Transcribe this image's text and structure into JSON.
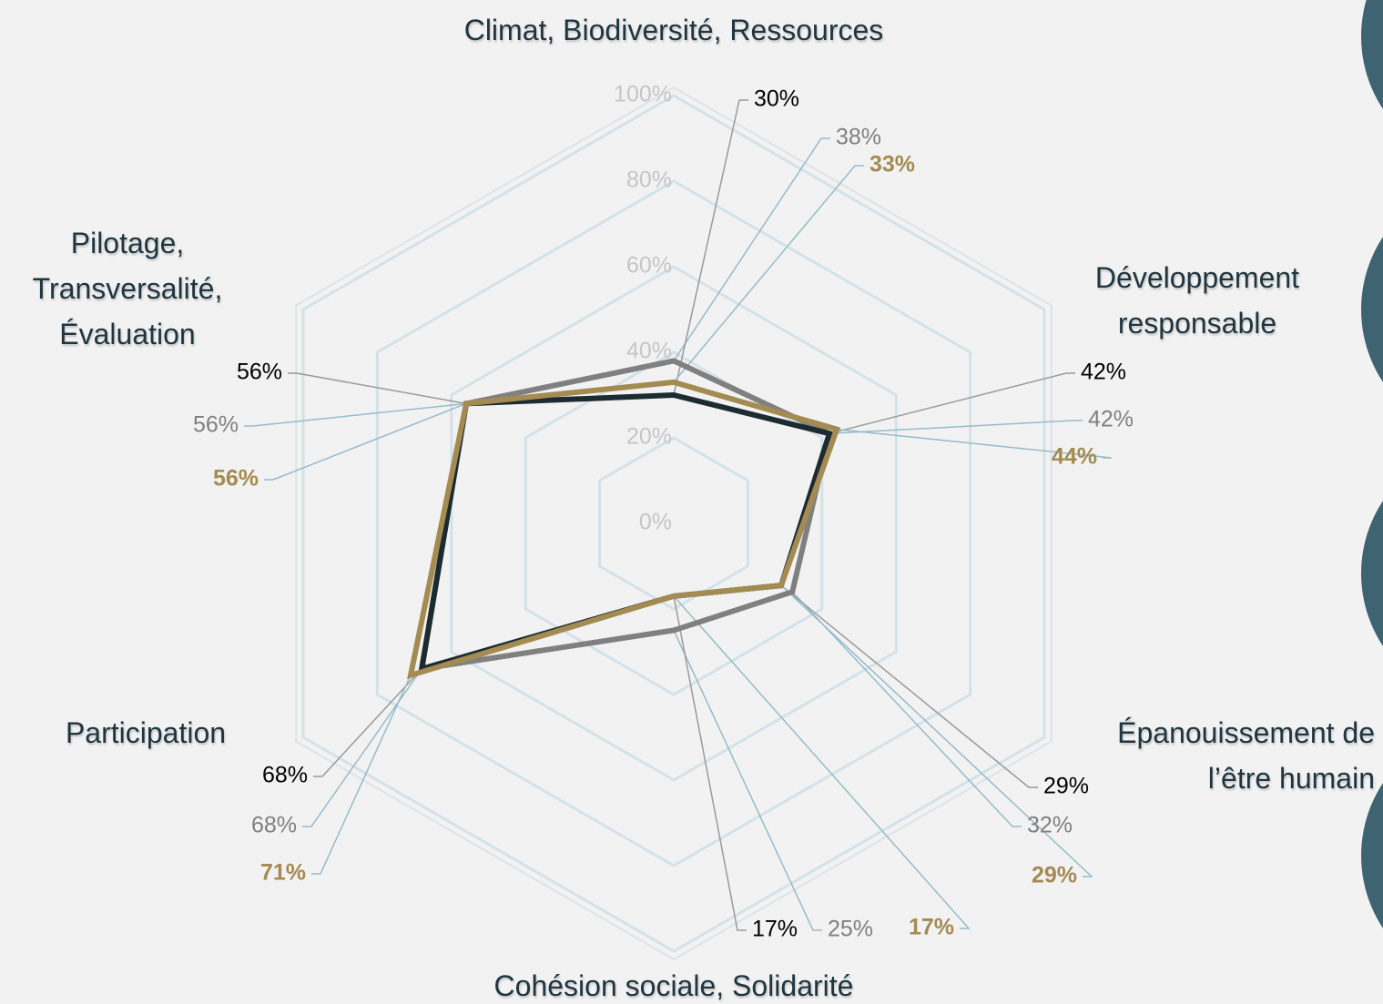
{
  "chart_data": {
    "type": "radar",
    "categories": [
      "Climat, Biodiversité, Ressources",
      "Développement responsable",
      "Épanouissement de l’être humain",
      "Cohésion sociale, Solidarité",
      "Participation",
      "Pilotage, Transversalité, Évaluation"
    ],
    "ylim": [
      0,
      100
    ],
    "yticks": [
      {
        "value": 0,
        "label": "0%"
      },
      {
        "value": 20,
        "label": "20%"
      },
      {
        "value": 40,
        "label": "40%"
      },
      {
        "value": 60,
        "label": "60%"
      },
      {
        "value": 80,
        "label": "80%"
      },
      {
        "value": 100,
        "label": "100%"
      }
    ],
    "grid": true,
    "series": [
      {
        "color": "#808080",
        "values": [
          38,
          42,
          32,
          25,
          68,
          56
        ],
        "value_labels": [
          "38%",
          "42%",
          "32%",
          "25%",
          "68%",
          "56%"
        ]
      },
      {
        "color": "#1c2b30",
        "values": [
          30,
          42,
          29,
          17,
          68,
          56
        ],
        "value_labels": [
          "30%",
          "42%",
          "29%",
          "17%",
          "68%",
          "56%"
        ]
      },
      {
        "color": "#a38b52",
        "values": [
          33,
          44,
          29,
          17,
          71,
          56
        ],
        "value_labels": [
          "33%",
          "44%",
          "29%",
          "17%",
          "71%",
          "56%"
        ]
      }
    ]
  }
}
